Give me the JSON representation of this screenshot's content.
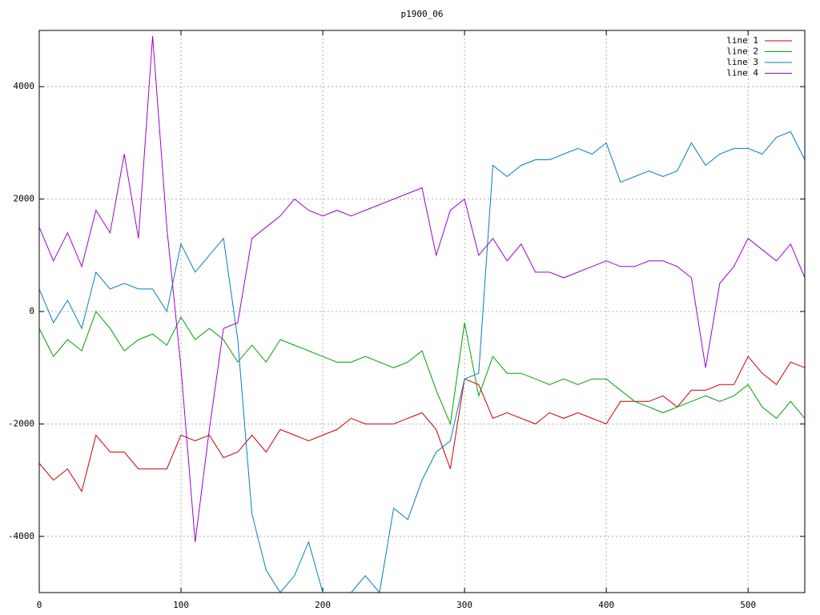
{
  "chart_data": {
    "type": "line",
    "title": "p1900_06",
    "x": [
      0,
      10,
      20,
      30,
      40,
      50,
      60,
      70,
      80,
      90,
      100,
      110,
      120,
      130,
      140,
      150,
      160,
      170,
      180,
      190,
      200,
      210,
      220,
      230,
      240,
      250,
      260,
      270,
      280,
      290,
      300,
      310,
      320,
      330,
      340,
      350,
      360,
      370,
      380,
      390,
      400,
      410,
      420,
      430,
      440,
      450,
      460,
      470,
      480,
      490,
      500,
      510,
      520,
      530,
      540
    ],
    "series": [
      {
        "name": "line 1",
        "color": "#cc0000",
        "values": [
          -2700,
          -3000,
          -2800,
          -3200,
          -2200,
          -2500,
          -2500,
          -2800,
          -2800,
          -2800,
          -2200,
          -2300,
          -2200,
          -2600,
          -2500,
          -2200,
          -2500,
          -2100,
          -2200,
          -2300,
          -2200,
          -2100,
          -1900,
          -2000,
          -2000,
          -2000,
          -1900,
          -1800,
          -2100,
          -2800,
          -1200,
          -1300,
          -1900,
          -1800,
          -1900,
          -2000,
          -1800,
          -1900,
          -1800,
          -1900,
          -2000,
          -1600,
          -1600,
          -1600,
          -1500,
          -1700,
          -1400,
          -1400,
          -1300,
          -1300,
          -800,
          -1100,
          -1300,
          -900,
          -1000
        ]
      },
      {
        "name": "line 2",
        "color": "#00a000",
        "values": [
          -300,
          -800,
          -500,
          -700,
          0,
          -300,
          -700,
          -500,
          -400,
          -600,
          -100,
          -500,
          -300,
          -500,
          -900,
          -600,
          -900,
          -500,
          -600,
          -700,
          -800,
          -900,
          -900,
          -800,
          -900,
          -1000,
          -900,
          -700,
          -1400,
          -2000,
          -200,
          -1500,
          -800,
          -1100,
          -1100,
          -1200,
          -1300,
          -1200,
          -1300,
          -1200,
          -1200,
          -1400,
          -1600,
          -1700,
          -1800,
          -1700,
          -1600,
          -1500,
          -1600,
          -1500,
          -1300,
          -1700,
          -1900,
          -1600,
          -1900
        ]
      },
      {
        "name": "line 3",
        "color": "#0080c0",
        "values": [
          400,
          -200,
          200,
          -300,
          700,
          400,
          500,
          400,
          400,
          0,
          1200,
          700,
          1000,
          1300,
          -500,
          -3600,
          -4600,
          -5000,
          -4700,
          -4100,
          -5000,
          -5000,
          -5000,
          -4700,
          -5000,
          -3500,
          -3700,
          -3000,
          -2500,
          -2300,
          -1200,
          -1100,
          2600,
          2400,
          2600,
          2700,
          2700,
          2800,
          2900,
          2800,
          3000,
          2300,
          2400,
          2500,
          2400,
          2500,
          3000,
          2600,
          2800,
          2900,
          2900,
          2800,
          3100,
          3200,
          2700
        ]
      },
      {
        "name": "line 4",
        "color": "#a000d0",
        "values": [
          1500,
          900,
          1400,
          800,
          1800,
          1400,
          2800,
          1300,
          4900,
          1500,
          -1000,
          -4100,
          -2100,
          -300,
          -200,
          1300,
          1500,
          1700,
          2000,
          1800,
          1700,
          1800,
          1700,
          1800,
          1900,
          2000,
          2100,
          2200,
          1000,
          1800,
          2000,
          1000,
          1300,
          900,
          1200,
          700,
          700,
          600,
          700,
          800,
          900,
          800,
          800,
          900,
          900,
          800,
          600,
          -1000,
          500,
          800,
          1300,
          1100,
          900,
          1200,
          600
        ]
      }
    ],
    "xlim": [
      0,
      540
    ],
    "xticks": [
      0,
      100,
      200,
      300,
      400,
      500
    ],
    "ylim": [
      -5000,
      5000
    ],
    "yticks": [
      -4000,
      -2000,
      0,
      2000,
      4000
    ],
    "grid": true,
    "legend": "top-right"
  }
}
